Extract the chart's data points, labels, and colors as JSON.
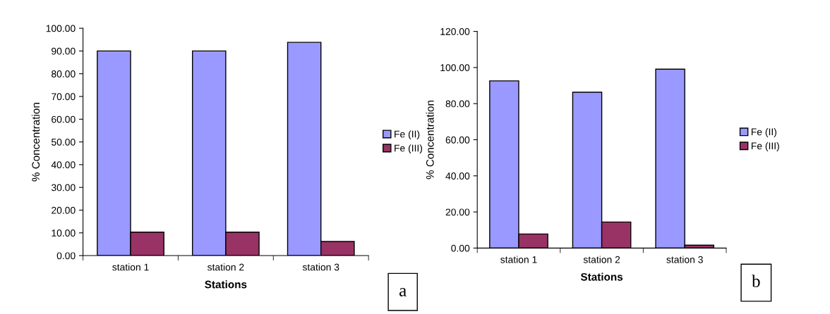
{
  "chart_data": [
    {
      "type": "bar",
      "xlabel": "Stations",
      "ylabel": "% Concentration",
      "categories": [
        "station 1",
        "station 2",
        "station 3"
      ],
      "series": [
        {
          "name": "Fe (II)",
          "color": "#9999ff",
          "values": [
            90,
            90,
            93.8
          ]
        },
        {
          "name": "Fe (III)",
          "color": "#993366",
          "values": [
            10.3,
            10.3,
            6.2
          ]
        }
      ],
      "ylim": [
        0,
        100
      ],
      "yticks": [
        {
          "value": 0,
          "label": "0.00"
        },
        {
          "value": 10,
          "label": "10.00"
        },
        {
          "value": 20,
          "label": "20.00"
        },
        {
          "value": 30,
          "label": "30.00"
        },
        {
          "value": 40,
          "label": "40.00"
        },
        {
          "value": 50,
          "label": "50.00"
        },
        {
          "value": 60,
          "label": "60.00"
        },
        {
          "value": 70,
          "label": "70.00"
        },
        {
          "value": 80,
          "label": "80.00"
        },
        {
          "value": 90,
          "label": "90.00"
        },
        {
          "value": 100,
          "label": "100.00"
        }
      ],
      "legend": "right",
      "annotations": [
        "a"
      ]
    },
    {
      "type": "bar",
      "xlabel": "Stations",
      "ylabel": "% Concentration",
      "categories": [
        "station 1",
        "station 2",
        "station 3"
      ],
      "series": [
        {
          "name": "Fe (II)",
          "color": "#9999ff",
          "values": [
            92.6,
            86.3,
            99.1
          ]
        },
        {
          "name": "Fe (III)",
          "color": "#993366",
          "values": [
            7.8,
            14.4,
            1.6
          ]
        }
      ],
      "ylim": [
        0,
        120
      ],
      "yticks": [
        {
          "value": 0,
          "label": "0.00"
        },
        {
          "value": 20,
          "label": "20.00"
        },
        {
          "value": 40,
          "label": "40.00"
        },
        {
          "value": 60,
          "label": "60.00"
        },
        {
          "value": 80,
          "label": "80.00"
        },
        {
          "value": 100,
          "label": "100.00"
        },
        {
          "value": 120,
          "label": "120.00"
        }
      ],
      "legend": "right",
      "annotations": [
        "b"
      ]
    }
  ]
}
